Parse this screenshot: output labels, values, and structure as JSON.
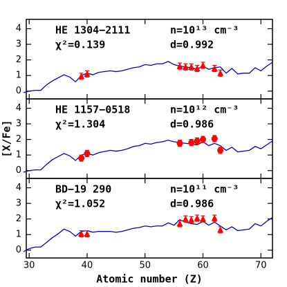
{
  "chart_data": [
    {
      "type": "line",
      "annotations": [
        "HE 1304−2111",
        "χ²=0.139",
        "n=10¹³ cm⁻³",
        "d=0.992"
      ],
      "xlim": [
        29.5,
        72
      ],
      "xticks": [
        30,
        40,
        50,
        60,
        70
      ],
      "ylim": [
        -0.5,
        4.6
      ],
      "yticks": [
        0,
        1,
        2,
        3,
        4
      ],
      "series": [
        {
          "color": "#0000cc",
          "marker": "line",
          "x": [
            29,
            30,
            31,
            32,
            33,
            34,
            35,
            36,
            37,
            38,
            39,
            40,
            41,
            42,
            44,
            45,
            46,
            47,
            48,
            49,
            50,
            51,
            52,
            53,
            54,
            55,
            56,
            57,
            58,
            59,
            60,
            61,
            62,
            63,
            64,
            65,
            66,
            67,
            68,
            69,
            70,
            71,
            72
          ],
          "values": [
            -0.1,
            0,
            0.05,
            0.05,
            0.4,
            0.65,
            0.85,
            1.05,
            0.9,
            0.6,
            1.0,
            1.15,
            1.05,
            1.2,
            1.3,
            1.25,
            1.3,
            1.4,
            1.5,
            1.55,
            1.7,
            1.65,
            1.75,
            1.75,
            1.9,
            1.7,
            1.6,
            1.55,
            1.5,
            1.4,
            1.6,
            1.4,
            1.5,
            1.55,
            1.15,
            1.45,
            1.1,
            1.15,
            1.15,
            1.5,
            1.3,
            1.6,
            1.85
          ]
        },
        {
          "color": "#ff0000",
          "marker": "triangle",
          "x": [
            39,
            40,
            56,
            57,
            58,
            59,
            60,
            62,
            63
          ],
          "values": [
            0.95,
            1.1,
            1.6,
            1.55,
            1.55,
            1.45,
            1.65,
            1.45,
            1.15
          ],
          "errors": [
            0.2,
            0.2,
            0.2,
            0.2,
            0.2,
            0.2,
            0.2,
            0.2,
            0.2
          ]
        }
      ]
    },
    {
      "type": "line",
      "annotations": [
        "HE 1157−0518",
        "χ²=1.304",
        "n=10¹² cm⁻³",
        "d=0.986"
      ],
      "ylabel": "[X/Fe]",
      "xlim": [
        29.5,
        72
      ],
      "xticks": [
        30,
        40,
        50,
        60,
        70
      ],
      "ylim": [
        -0.5,
        4.6
      ],
      "yticks": [
        0,
        1,
        2,
        3,
        4
      ],
      "series": [
        {
          "color": "#0000cc",
          "marker": "line",
          "x": [
            29,
            30,
            31,
            32,
            33,
            34,
            35,
            36,
            37,
            38,
            39,
            40,
            41,
            42,
            44,
            45,
            46,
            47,
            48,
            49,
            50,
            51,
            52,
            53,
            54,
            55,
            56,
            57,
            58,
            59,
            60,
            61,
            62,
            63,
            64,
            65,
            66,
            67,
            68,
            69,
            70,
            71,
            72
          ],
          "values": [
            -0.1,
            0,
            0.05,
            0.05,
            0.4,
            0.7,
            0.9,
            1.1,
            0.95,
            0.65,
            1.0,
            1.1,
            1.0,
            1.15,
            1.3,
            1.25,
            1.3,
            1.4,
            1.55,
            1.6,
            1.75,
            1.7,
            1.8,
            1.85,
            1.95,
            1.85,
            1.8,
            1.75,
            1.7,
            1.65,
            1.85,
            1.6,
            1.75,
            1.6,
            1.3,
            1.5,
            1.2,
            1.25,
            1.3,
            1.55,
            1.4,
            1.65,
            1.9
          ]
        },
        {
          "color": "#ff0000",
          "marker": "circle",
          "x": [
            39,
            40,
            56,
            58,
            59,
            60,
            62,
            63
          ],
          "values": [
            0.8,
            1.1,
            1.75,
            1.8,
            1.9,
            2.0,
            2.05,
            1.3
          ],
          "errors": [
            0.2,
            0.2,
            0.2,
            0.2,
            0.2,
            0.2,
            0.2,
            0.2
          ]
        }
      ]
    },
    {
      "type": "line",
      "annotations": [
        "BD−19 290",
        "χ²=1.052",
        "n=10¹¹ cm⁻³",
        "d=0.986"
      ],
      "xlabel": "Atomic number (Z)",
      "xlim": [
        29.5,
        72
      ],
      "xticks": [
        30,
        40,
        50,
        60,
        70
      ],
      "ylim": [
        -0.5,
        4.6
      ],
      "yticks": [
        0,
        1,
        2,
        3,
        4
      ],
      "series": [
        {
          "color": "#0000cc",
          "marker": "line",
          "x": [
            29,
            30,
            31,
            32,
            33,
            34,
            35,
            36,
            37,
            38,
            39,
            40,
            41,
            42,
            44,
            45,
            46,
            47,
            48,
            49,
            50,
            51,
            52,
            53,
            54,
            55,
            56,
            57,
            58,
            59,
            60,
            61,
            62,
            63,
            64,
            65,
            66,
            67,
            68,
            69,
            70,
            71,
            72
          ],
          "values": [
            -0.1,
            0.1,
            0.2,
            0.2,
            0.5,
            0.8,
            1.05,
            1.35,
            1.2,
            0.9,
            1.2,
            1.25,
            1.15,
            1.2,
            1.2,
            1.15,
            1.2,
            1.3,
            1.4,
            1.45,
            1.55,
            1.5,
            1.55,
            1.55,
            1.75,
            1.6,
            1.95,
            1.8,
            1.7,
            1.65,
            1.85,
            1.6,
            1.8,
            1.55,
            1.3,
            1.5,
            1.25,
            1.3,
            1.35,
            1.7,
            1.55,
            1.85,
            2.1
          ]
        },
        {
          "color": "#ff0000",
          "marker": "triangle",
          "x": [
            39,
            40,
            56,
            57,
            58,
            59,
            60,
            62,
            63
          ],
          "values": [
            1.05,
            1.05,
            1.7,
            2.0,
            1.95,
            2.05,
            2.0,
            2.05,
            1.3
          ],
          "errors": [
            0.2,
            0.2,
            0.2,
            0.2,
            0.2,
            0.2,
            0.2,
            0.2,
            0.2
          ]
        }
      ]
    }
  ]
}
